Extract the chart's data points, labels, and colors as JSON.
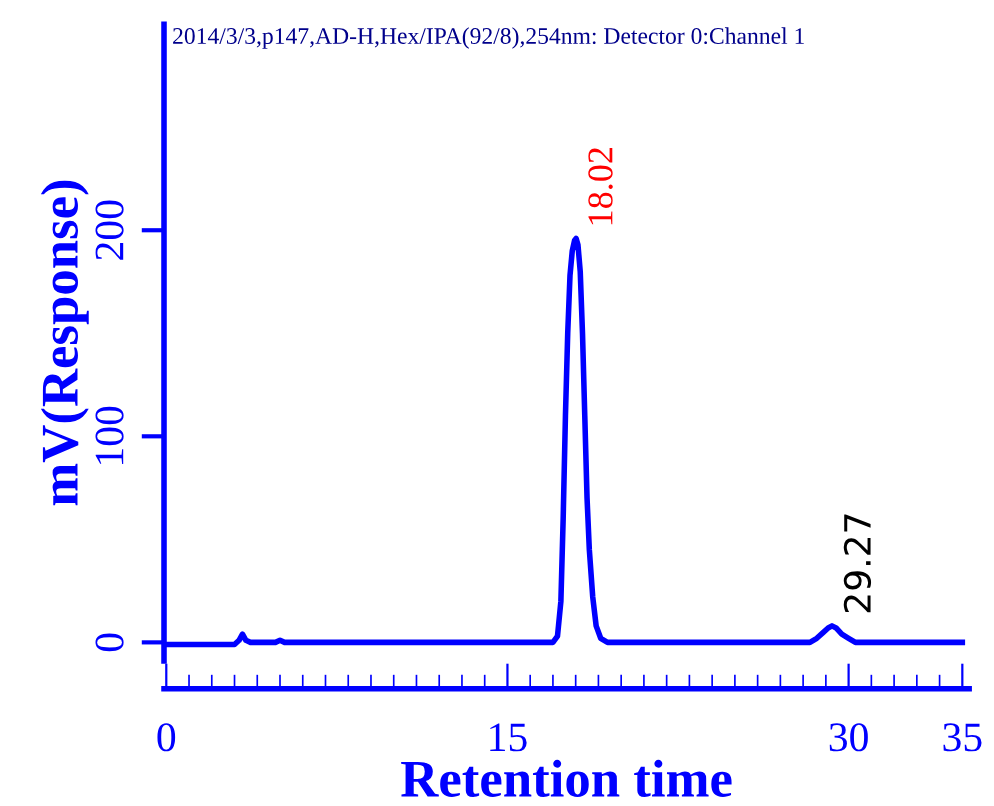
{
  "chart_data": {
    "type": "line",
    "title": "2014/3/3,p147,AD-H,Hex/IPA(92/8),254nm: Detector 0:Channel 1",
    "xlabel": "Retention time",
    "ylabel": "mV(Response)",
    "x": [
      0.1,
      0.5,
      1,
      1.5,
      2,
      2.5,
      3,
      3.2,
      3.35,
      3.5,
      3.7,
      4,
      4.8,
      5,
      5.2,
      6,
      10,
      15,
      17,
      17.2,
      17.35,
      17.45,
      17.55,
      17.65,
      17.75,
      17.85,
      17.95,
      18.02,
      18.1,
      18.2,
      18.3,
      18.4,
      18.5,
      18.6,
      18.75,
      18.9,
      19.1,
      19.4,
      20,
      25,
      28.3,
      28.6,
      28.9,
      29.1,
      29.27,
      29.45,
      29.7,
      30,
      30.3,
      30.6,
      32,
      35
    ],
    "series": [
      {
        "color": "#0000ff",
        "values": [
          -1,
          -1,
          -1,
          -1,
          -1,
          -1,
          -1,
          1,
          4,
          1,
          0,
          0,
          0,
          1,
          0,
          0,
          0,
          0,
          0,
          3,
          20,
          60,
          110,
          150,
          178,
          190,
          195,
          196,
          193,
          180,
          150,
          110,
          70,
          45,
          22,
          8,
          2,
          0,
          0,
          0,
          0,
          2,
          5,
          7,
          8,
          7,
          4,
          2,
          0,
          0,
          0,
          0
        ]
      }
    ],
    "xlim": [
      -0.1,
      35.3
    ],
    "ylim": [
      -9,
      300
    ],
    "xticks": [
      0,
      15,
      30,
      35
    ],
    "yticks": [
      0,
      100,
      200
    ],
    "grid": false,
    "legend": false,
    "marker": "none",
    "line_style": "solid",
    "annotations": [
      {
        "text": "18.02",
        "x": 18.02,
        "y": 196
      },
      {
        "text": "29.27",
        "x": 29.27,
        "y": 8
      }
    ]
  }
}
